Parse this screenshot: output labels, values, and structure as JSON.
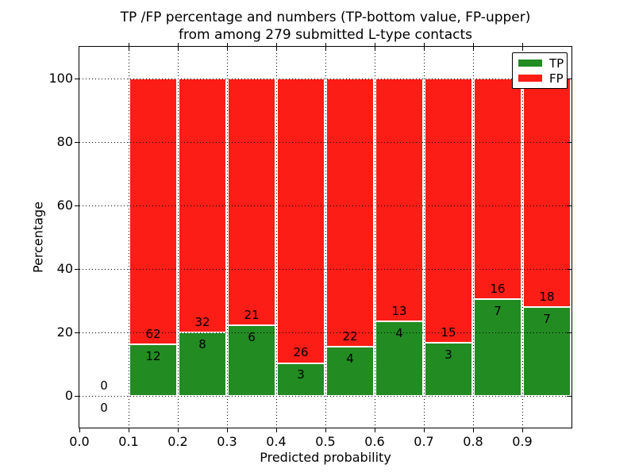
{
  "chart_data": {
    "type": "bar",
    "stacked": true,
    "title_line1": "TP /FP percentage and numbers (TP-bottom value, FP-upper)",
    "title_line2": "from among 279 submitted L-type contacts",
    "xlabel": "Predicted probability",
    "ylabel": "Percentage",
    "xlim": [
      0.0,
      1.0
    ],
    "ylim": [
      -10,
      110
    ],
    "xticks": [
      "0.0",
      "0.1",
      "0.2",
      "0.3",
      "0.4",
      "0.5",
      "0.6",
      "0.7",
      "0.8",
      "0.9"
    ],
    "yticks": [
      0,
      20,
      40,
      60,
      80,
      100
    ],
    "grid": "dotted-black-over-bars",
    "legend_position": "upper right",
    "bin_width": 0.1,
    "note": "bars normalized to 100%; green height = tp/(tp+fp)*100; labels show raw counts",
    "bins": [
      {
        "x": 0.0,
        "tp": 0,
        "fp": 0
      },
      {
        "x": 0.1,
        "tp": 12,
        "fp": 62
      },
      {
        "x": 0.2,
        "tp": 8,
        "fp": 32
      },
      {
        "x": 0.3,
        "tp": 6,
        "fp": 21
      },
      {
        "x": 0.4,
        "tp": 3,
        "fp": 26
      },
      {
        "x": 0.5,
        "tp": 4,
        "fp": 22
      },
      {
        "x": 0.6,
        "tp": 4,
        "fp": 13
      },
      {
        "x": 0.7,
        "tp": 3,
        "fp": 15
      },
      {
        "x": 0.8,
        "tp": 7,
        "fp": 16
      },
      {
        "x": 0.9,
        "tp": 7,
        "fp": 18
      }
    ],
    "series": [
      {
        "name": "TP",
        "color": "#228b22"
      },
      {
        "name": "FP",
        "color": "#fc1d17"
      }
    ]
  }
}
